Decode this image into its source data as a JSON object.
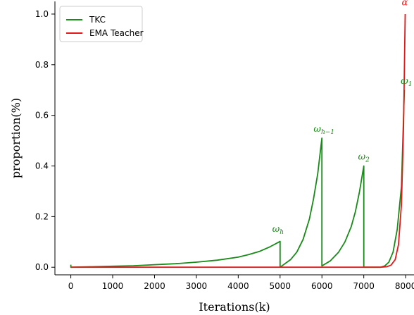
{
  "chart_data": {
    "type": "line",
    "title": "",
    "xlabel": "Iterations(k)",
    "ylabel": "proportion(%)",
    "xlim": [
      -380,
      8200
    ],
    "ylim": [
      -0.03,
      1.05
    ],
    "xticks": [
      0,
      1000,
      2000,
      3000,
      4000,
      5000,
      6000,
      7000,
      8000
    ],
    "xtick_labels": [
      "0",
      "1000",
      "2000",
      "3000",
      "4000",
      "5000",
      "6000",
      "7000",
      "8000"
    ],
    "yticks": [
      0.0,
      0.2,
      0.4,
      0.6,
      0.8,
      1.0
    ],
    "ytick_labels": [
      "0.0",
      "0.2",
      "0.4",
      "0.6",
      "0.8",
      "1.0"
    ],
    "grid": false,
    "legend_position": "top-left",
    "series": [
      {
        "name": "TKC",
        "color": "#1a8a1a",
        "x": [
          0,
          0,
          500,
          1000,
          1500,
          2000,
          2500,
          3000,
          3500,
          4000,
          4250,
          4500,
          4750,
          5000,
          5000,
          5250,
          5400,
          5550,
          5700,
          5800,
          5900,
          6000,
          6000,
          6200,
          6400,
          6550,
          6700,
          6800,
          6900,
          7000,
          7000,
          7400,
          7500,
          7600,
          7700,
          7800,
          7900,
          7970
        ],
        "y": [
          0.01,
          0.0,
          0.002,
          0.004,
          0.006,
          0.01,
          0.014,
          0.02,
          0.028,
          0.04,
          0.05,
          0.062,
          0.08,
          0.102,
          0.0,
          0.03,
          0.06,
          0.11,
          0.19,
          0.27,
          0.37,
          0.51,
          0.005,
          0.025,
          0.06,
          0.1,
          0.16,
          0.22,
          0.3,
          0.4,
          0.0,
          0.0,
          0.005,
          0.02,
          0.06,
          0.15,
          0.32,
          0.7
        ]
      },
      {
        "name": "EMA Teacher",
        "color": "#e31a1c",
        "x": [
          0,
          1000,
          2000,
          3000,
          4000,
          5000,
          6000,
          7000,
          7400,
          7550,
          7650,
          7750,
          7830,
          7900,
          7950,
          7990
        ],
        "y": [
          0.0,
          0.0,
          0.0,
          0.0,
          0.0,
          0.0,
          0.0,
          0.0,
          0.0,
          0.002,
          0.008,
          0.03,
          0.09,
          0.25,
          0.55,
          1.0
        ]
      }
    ],
    "annotations": [
      {
        "main": "ω",
        "sub": "h",
        "x": 4950,
        "y": 0.14,
        "color": "#1a8a1a"
      },
      {
        "main": "ω",
        "sub": "h−1",
        "x": 6050,
        "y": 0.535,
        "color": "#1a8a1a"
      },
      {
        "main": "ω",
        "sub": "2",
        "x": 7000,
        "y": 0.425,
        "color": "#1a8a1a"
      },
      {
        "main": "ω",
        "sub": "1",
        "x": 8020,
        "y": 0.725,
        "color": "#1a8a1a"
      },
      {
        "main": "α",
        "sub": "",
        "x": 7980,
        "y": 1.035,
        "color": "#e31a1c"
      }
    ]
  }
}
